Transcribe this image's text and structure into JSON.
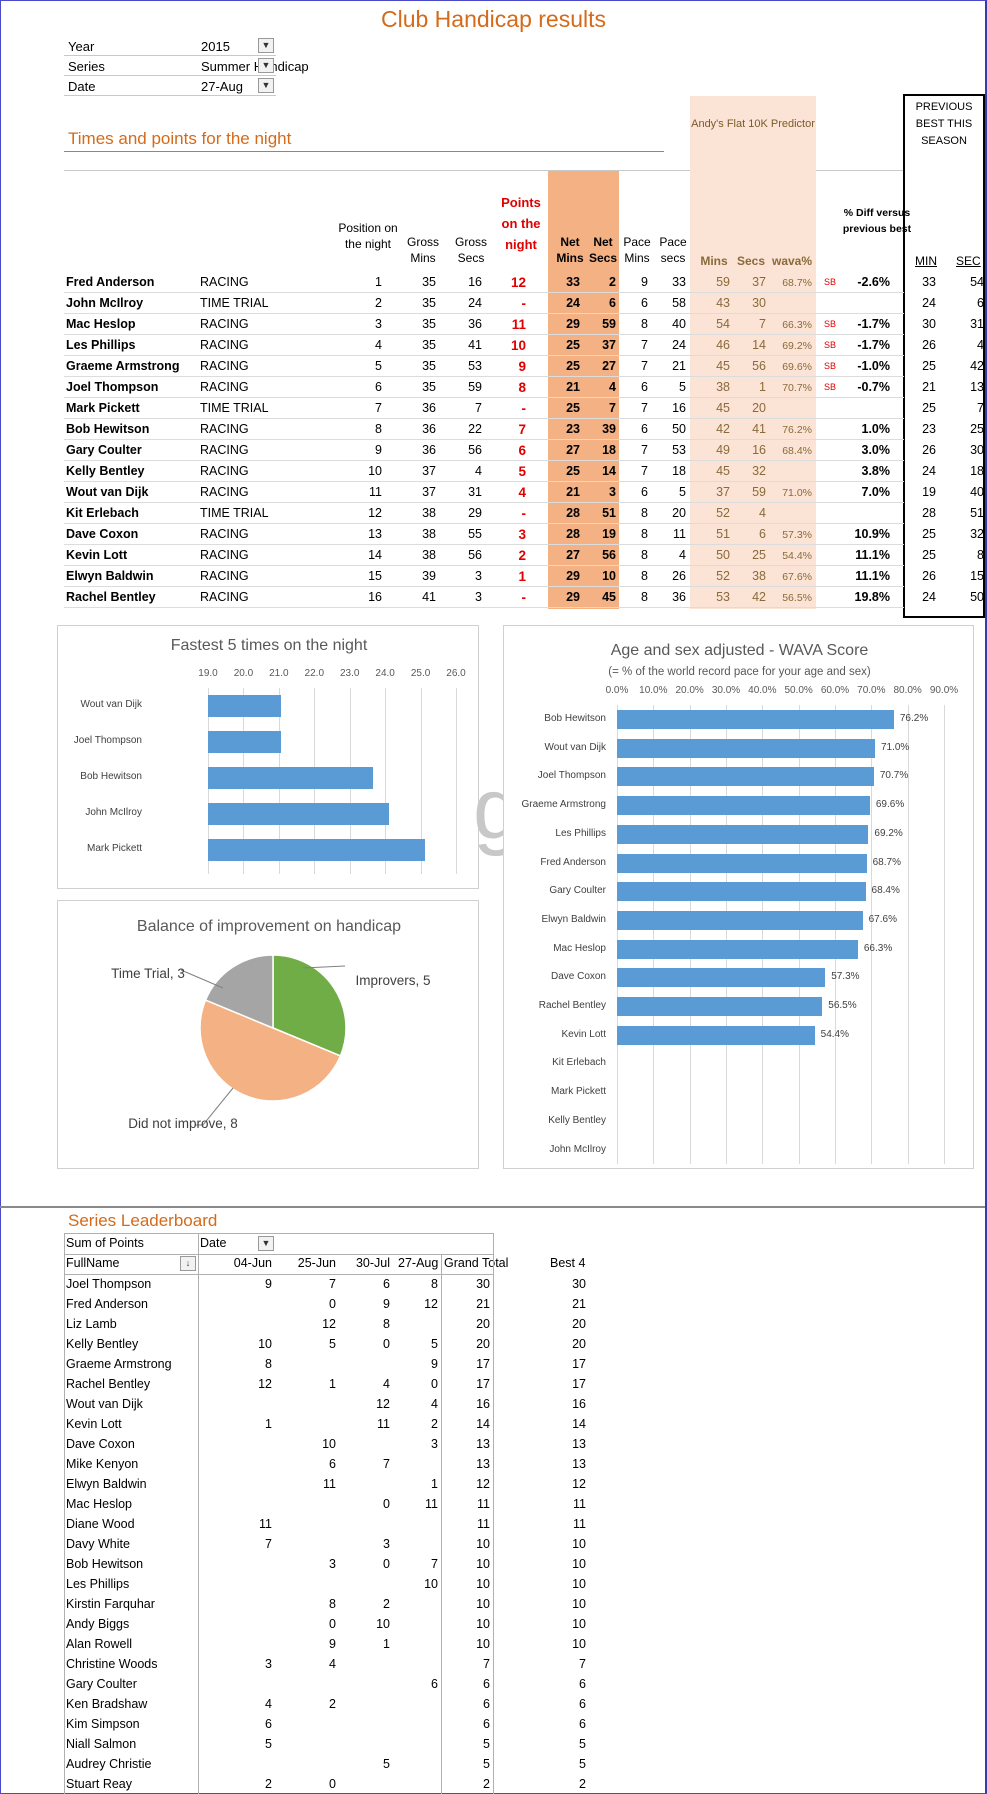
{
  "title": "Club Handicap results",
  "filters": [
    {
      "label": "Year",
      "value": "2015"
    },
    {
      "label": "Series",
      "value": "Summer Handicap"
    },
    {
      "label": "Date",
      "value": "27-Aug"
    }
  ],
  "section_title": "Times and points for the night",
  "predictor_header": "Andy's Flat 10K Predictor",
  "previous_best_header": "PREVIOUS BEST THIS SEASON",
  "headers": {
    "position": "Position on the night",
    "gross_mins": "Gross Mins",
    "gross_secs": "Gross Secs",
    "points": "Points on the night",
    "net_mins": "Net Mins",
    "net_secs": "Net Secs",
    "pace_mins": "Pace Mins",
    "pace_secs": "Pace secs",
    "pred_mins": "Mins",
    "pred_secs": "Secs",
    "wava": "wava%",
    "diff": "% Diff versus previous best",
    "min": "MIN",
    "sec": "SEC"
  },
  "results": [
    {
      "name": "Fred Anderson",
      "type": "RACING",
      "pos": "1",
      "gmin": "35",
      "gsec": "16",
      "pts": "12",
      "nmin": "33",
      "nsec": "2",
      "pmin": "9",
      "psec": "33",
      "prmin": "59",
      "prsec": "37",
      "wava": "68.7%",
      "sb": "SB",
      "diff": "-2.6%",
      "bmin": "33",
      "bsec": "54"
    },
    {
      "name": "John McIlroy",
      "type": "TIME TRIAL",
      "pos": "2",
      "gmin": "35",
      "gsec": "24",
      "pts": "-",
      "nmin": "24",
      "nsec": "6",
      "pmin": "6",
      "psec": "58",
      "prmin": "43",
      "prsec": "30",
      "wava": "",
      "sb": "",
      "diff": "",
      "bmin": "24",
      "bsec": "6"
    },
    {
      "name": "Mac Heslop",
      "type": "RACING",
      "pos": "3",
      "gmin": "35",
      "gsec": "36",
      "pts": "11",
      "nmin": "29",
      "nsec": "59",
      "pmin": "8",
      "psec": "40",
      "prmin": "54",
      "prsec": "7",
      "wava": "66.3%",
      "sb": "SB",
      "diff": "-1.7%",
      "bmin": "30",
      "bsec": "31"
    },
    {
      "name": "Les Phillips",
      "type": "RACING",
      "pos": "4",
      "gmin": "35",
      "gsec": "41",
      "pts": "10",
      "nmin": "25",
      "nsec": "37",
      "pmin": "7",
      "psec": "24",
      "prmin": "46",
      "prsec": "14",
      "wava": "69.2%",
      "sb": "SB",
      "diff": "-1.7%",
      "bmin": "26",
      "bsec": "4"
    },
    {
      "name": "Graeme Armstrong",
      "type": "RACING",
      "pos": "5",
      "gmin": "35",
      "gsec": "53",
      "pts": "9",
      "nmin": "25",
      "nsec": "27",
      "pmin": "7",
      "psec": "21",
      "prmin": "45",
      "prsec": "56",
      "wava": "69.6%",
      "sb": "SB",
      "diff": "-1.0%",
      "bmin": "25",
      "bsec": "42"
    },
    {
      "name": "Joel Thompson",
      "type": "RACING",
      "pos": "6",
      "gmin": "35",
      "gsec": "59",
      "pts": "8",
      "nmin": "21",
      "nsec": "4",
      "pmin": "6",
      "psec": "5",
      "prmin": "38",
      "prsec": "1",
      "wava": "70.7%",
      "sb": "SB",
      "diff": "-0.7%",
      "bmin": "21",
      "bsec": "13"
    },
    {
      "name": "Mark Pickett",
      "type": "TIME TRIAL",
      "pos": "7",
      "gmin": "36",
      "gsec": "7",
      "pts": "-",
      "nmin": "25",
      "nsec": "7",
      "pmin": "7",
      "psec": "16",
      "prmin": "45",
      "prsec": "20",
      "wava": "",
      "sb": "",
      "diff": "",
      "bmin": "25",
      "bsec": "7"
    },
    {
      "name": "Bob Hewitson",
      "type": "RACING",
      "pos": "8",
      "gmin": "36",
      "gsec": "22",
      "pts": "7",
      "nmin": "23",
      "nsec": "39",
      "pmin": "6",
      "psec": "50",
      "prmin": "42",
      "prsec": "41",
      "wava": "76.2%",
      "sb": "",
      "diff": "1.0%",
      "bmin": "23",
      "bsec": "25"
    },
    {
      "name": "Gary Coulter",
      "type": "RACING",
      "pos": "9",
      "gmin": "36",
      "gsec": "56",
      "pts": "6",
      "nmin": "27",
      "nsec": "18",
      "pmin": "7",
      "psec": "53",
      "prmin": "49",
      "prsec": "16",
      "wava": "68.4%",
      "sb": "",
      "diff": "3.0%",
      "bmin": "26",
      "bsec": "30"
    },
    {
      "name": "Kelly Bentley",
      "type": "RACING",
      "pos": "10",
      "gmin": "37",
      "gsec": "4",
      "pts": "5",
      "nmin": "25",
      "nsec": "14",
      "pmin": "7",
      "psec": "18",
      "prmin": "45",
      "prsec": "32",
      "wava": "",
      "sb": "",
      "diff": "3.8%",
      "bmin": "24",
      "bsec": "18"
    },
    {
      "name": "Wout van Dijk",
      "type": "RACING",
      "pos": "11",
      "gmin": "37",
      "gsec": "31",
      "pts": "4",
      "nmin": "21",
      "nsec": "3",
      "pmin": "6",
      "psec": "5",
      "prmin": "37",
      "prsec": "59",
      "wava": "71.0%",
      "sb": "",
      "diff": "7.0%",
      "bmin": "19",
      "bsec": "40"
    },
    {
      "name": "Kit Erlebach",
      "type": "TIME TRIAL",
      "pos": "12",
      "gmin": "38",
      "gsec": "29",
      "pts": "-",
      "nmin": "28",
      "nsec": "51",
      "pmin": "8",
      "psec": "20",
      "prmin": "52",
      "prsec": "4",
      "wava": "",
      "sb": "",
      "diff": "",
      "bmin": "28",
      "bsec": "51"
    },
    {
      "name": "Dave Coxon",
      "type": "RACING",
      "pos": "13",
      "gmin": "38",
      "gsec": "55",
      "pts": "3",
      "nmin": "28",
      "nsec": "19",
      "pmin": "8",
      "psec": "11",
      "prmin": "51",
      "prsec": "6",
      "wava": "57.3%",
      "sb": "",
      "diff": "10.9%",
      "bmin": "25",
      "bsec": "32"
    },
    {
      "name": "Kevin Lott",
      "type": "RACING",
      "pos": "14",
      "gmin": "38",
      "gsec": "56",
      "pts": "2",
      "nmin": "27",
      "nsec": "56",
      "pmin": "8",
      "psec": "4",
      "prmin": "50",
      "prsec": "25",
      "wava": "54.4%",
      "sb": "",
      "diff": "11.1%",
      "bmin": "25",
      "bsec": "8"
    },
    {
      "name": "Elwyn Baldwin",
      "type": "RACING",
      "pos": "15",
      "gmin": "39",
      "gsec": "3",
      "pts": "1",
      "nmin": "29",
      "nsec": "10",
      "pmin": "8",
      "psec": "26",
      "prmin": "52",
      "prsec": "38",
      "wava": "67.6%",
      "sb": "",
      "diff": "11.1%",
      "bmin": "26",
      "bsec": "15"
    },
    {
      "name": "Rachel Bentley",
      "type": "RACING",
      "pos": "16",
      "gmin": "41",
      "gsec": "3",
      "pts": "-",
      "nmin": "29",
      "nsec": "45",
      "pmin": "8",
      "psec": "36",
      "prmin": "53",
      "prsec": "42",
      "wava": "56.5%",
      "sb": "",
      "diff": "19.8%",
      "bmin": "24",
      "bsec": "50"
    }
  ],
  "chart_data": [
    {
      "type": "bar",
      "orientation": "horizontal",
      "title": "Fastest 5 times on the night",
      "categories": [
        "Wout van Dijk",
        "Joel Thompson",
        "Bob Hewitson",
        "John McIlroy",
        "Mark Pickett"
      ],
      "values": [
        21.05,
        21.07,
        23.65,
        24.1,
        25.12
      ],
      "xlim": [
        19.0,
        26.0
      ],
      "tick_labels": [
        "19.0",
        "20.0",
        "21.0",
        "22.0",
        "23.0",
        "24.0",
        "25.0",
        "26.0"
      ],
      "grid": true
    },
    {
      "type": "bar",
      "orientation": "horizontal",
      "title": "Age and sex adjusted - WAVA Score",
      "subtitle": "(= % of the world record pace for your age and sex)",
      "categories": [
        "Bob Hewitson",
        "Wout van Dijk",
        "Joel Thompson",
        "Graeme Armstrong",
        "Les Phillips",
        "Fred Anderson",
        "Gary Coulter",
        "Elwyn Baldwin",
        "Mac Heslop",
        "Dave Coxon",
        "Rachel Bentley",
        "Kevin Lott",
        "Kit Erlebach",
        "Mark Pickett",
        "Kelly Bentley",
        "John McIlroy"
      ],
      "values": [
        76.2,
        71.0,
        70.7,
        69.6,
        69.2,
        68.7,
        68.4,
        67.6,
        66.3,
        57.3,
        56.5,
        54.4,
        null,
        null,
        null,
        null
      ],
      "data_labels": [
        "76.2%",
        "71.0%",
        "70.7%",
        "69.6%",
        "69.2%",
        "68.7%",
        "68.4%",
        "67.6%",
        "66.3%",
        "57.3%",
        "56.5%",
        "54.4%",
        "",
        "",
        "",
        ""
      ],
      "xlim": [
        0,
        90
      ],
      "tick_labels": [
        "0.0%",
        "10.0%",
        "20.0%",
        "30.0%",
        "40.0%",
        "50.0%",
        "60.0%",
        "70.0%",
        "80.0%",
        "90.0%"
      ],
      "grid": true
    },
    {
      "type": "pie",
      "title": "Balance of improvement on handicap",
      "slices": [
        {
          "label": "Improvers, 5",
          "value": 5,
          "color": "#70ad47"
        },
        {
          "label": "Did not improve, 8",
          "value": 8,
          "color": "#f4b183"
        },
        {
          "label": "Time Trial, 3",
          "value": 3,
          "color": "#a5a5a5"
        }
      ]
    }
  ],
  "leaderboard": {
    "title": "Series Leaderboard",
    "pivot_label": "Sum of Points",
    "date_label": "Date",
    "name_header": "FullName",
    "date_headers": [
      "04-Jun",
      "25-Jun",
      "30-Jul",
      "27-Aug"
    ],
    "total_header": "Grand Total",
    "best_header": "Best 4",
    "rows": [
      {
        "name": "Joel Thompson",
        "d": [
          "9",
          "7",
          "6",
          "8"
        ],
        "total": "30",
        "best": "30"
      },
      {
        "name": "Fred Anderson",
        "d": [
          "",
          "0",
          "9",
          "12"
        ],
        "total": "21",
        "best": "21"
      },
      {
        "name": "Liz Lamb",
        "d": [
          "",
          "12",
          "8",
          ""
        ],
        "total": "20",
        "best": "20"
      },
      {
        "name": "Kelly Bentley",
        "d": [
          "10",
          "5",
          "0",
          "5"
        ],
        "total": "20",
        "best": "20"
      },
      {
        "name": "Graeme Armstrong",
        "d": [
          "8",
          "",
          "",
          "9"
        ],
        "total": "17",
        "best": "17"
      },
      {
        "name": "Rachel Bentley",
        "d": [
          "12",
          "1",
          "4",
          "0"
        ],
        "total": "17",
        "best": "17"
      },
      {
        "name": "Wout van Dijk",
        "d": [
          "",
          "",
          "12",
          "4"
        ],
        "total": "16",
        "best": "16"
      },
      {
        "name": "Kevin Lott",
        "d": [
          "1",
          "",
          "11",
          "2"
        ],
        "total": "14",
        "best": "14"
      },
      {
        "name": "Dave Coxon",
        "d": [
          "",
          "10",
          "",
          "3"
        ],
        "total": "13",
        "best": "13"
      },
      {
        "name": "Mike Kenyon",
        "d": [
          "",
          "6",
          "7",
          ""
        ],
        "total": "13",
        "best": "13"
      },
      {
        "name": "Elwyn Baldwin",
        "d": [
          "",
          "11",
          "",
          "1"
        ],
        "total": "12",
        "best": "12"
      },
      {
        "name": "Mac Heslop",
        "d": [
          "",
          "",
          "0",
          "11"
        ],
        "total": "11",
        "best": "11"
      },
      {
        "name": "Diane Wood",
        "d": [
          "11",
          "",
          "",
          ""
        ],
        "total": "11",
        "best": "11"
      },
      {
        "name": "Davy White",
        "d": [
          "7",
          "",
          "3",
          ""
        ],
        "total": "10",
        "best": "10"
      },
      {
        "name": "Bob Hewitson",
        "d": [
          "",
          "3",
          "0",
          "7"
        ],
        "total": "10",
        "best": "10"
      },
      {
        "name": "Les Phillips",
        "d": [
          "",
          "",
          "",
          "10"
        ],
        "total": "10",
        "best": "10"
      },
      {
        "name": "Kirstin Farquhar",
        "d": [
          "",
          "8",
          "2",
          ""
        ],
        "total": "10",
        "best": "10"
      },
      {
        "name": "Andy Biggs",
        "d": [
          "",
          "0",
          "10",
          ""
        ],
        "total": "10",
        "best": "10"
      },
      {
        "name": "Alan Rowell",
        "d": [
          "",
          "9",
          "1",
          ""
        ],
        "total": "10",
        "best": "10"
      },
      {
        "name": "Christine Woods",
        "d": [
          "3",
          "4",
          "",
          ""
        ],
        "total": "7",
        "best": "7"
      },
      {
        "name": "Gary Coulter",
        "d": [
          "",
          "",
          "",
          "6"
        ],
        "total": "6",
        "best": "6"
      },
      {
        "name": "Ken Bradshaw",
        "d": [
          "4",
          "2",
          "",
          ""
        ],
        "total": "6",
        "best": "6"
      },
      {
        "name": "Kim Simpson",
        "d": [
          "6",
          "",
          "",
          ""
        ],
        "total": "6",
        "best": "6"
      },
      {
        "name": "Niall Salmon",
        "d": [
          "5",
          "",
          "",
          ""
        ],
        "total": "5",
        "best": "5"
      },
      {
        "name": "Audrey Christie",
        "d": [
          "",
          "",
          "5",
          ""
        ],
        "total": "5",
        "best": "5"
      },
      {
        "name": "Stuart Reay",
        "d": [
          "2",
          "0",
          "",
          ""
        ],
        "total": "2",
        "best": "2"
      }
    ]
  }
}
